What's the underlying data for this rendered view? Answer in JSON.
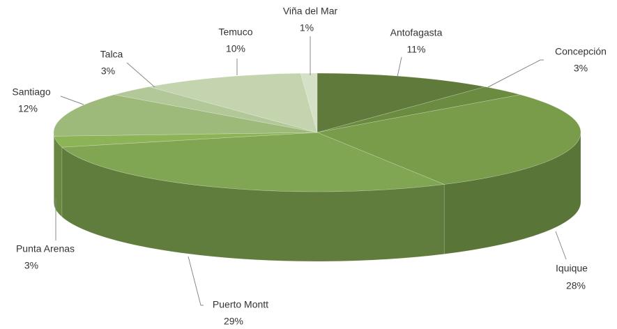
{
  "chart_data": {
    "type": "pie3d",
    "categories": [
      "Antofagasta",
      "Concepción",
      "Iquique",
      "Puerto Montt",
      "Punta Arenas",
      "Santiago",
      "Talca",
      "Temuco",
      "Viña del Mar"
    ],
    "values": [
      11,
      3,
      28,
      29,
      3,
      12,
      3,
      10,
      1
    ],
    "value_labels": [
      "11%",
      "3%",
      "28%",
      "29%",
      "3%",
      "12%",
      "3%",
      "10%",
      "1%"
    ],
    "colors": [
      "#5f7a3a",
      "#6b8b40",
      "#789c4a",
      "#80a653",
      "#8cb456",
      "#9dba7b",
      "#b2c899",
      "#c3d4af",
      "#d5e1c6"
    ]
  }
}
